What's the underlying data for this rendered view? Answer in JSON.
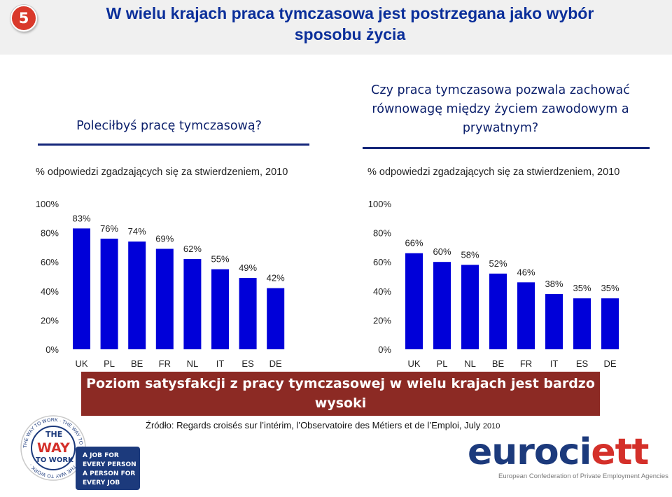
{
  "slide_number": "5",
  "title": "W wielu krajach praca tymczasowa jest postrzegana jako wybór sposobu życia",
  "colors": {
    "bar": "#0000d9",
    "title": "#0b2f9a",
    "banner": "#8c2a24",
    "badge": "#d9392b"
  },
  "chart_data": [
    {
      "type": "bar",
      "title": "Poleciłbyś pracę tymczasową?",
      "subtitle": "% odpowiedzi zgadzających się za stwierdzeniem, 2010",
      "categories": [
        "UK",
        "PL",
        "BE",
        "FR",
        "NL",
        "IT",
        "ES",
        "DE"
      ],
      "values": [
        83,
        76,
        74,
        69,
        62,
        55,
        49,
        42
      ],
      "value_labels": [
        "83%",
        "76%",
        "74%",
        "69%",
        "62%",
        "55%",
        "49%",
        "42%"
      ],
      "yticks": [
        "0%",
        "20%",
        "40%",
        "60%",
        "80%",
        "100%"
      ],
      "ylim": [
        0,
        100
      ],
      "grid": false,
      "legend": false
    },
    {
      "type": "bar",
      "title": "Czy praca tymczasowa pozwala zachować równowagę między życiem zawodowym a prywatnym?",
      "subtitle": "% odpowiedzi zgadzających się za stwierdzeniem, 2010",
      "categories": [
        "UK",
        "PL",
        "NL",
        "BE",
        "FR",
        "IT",
        "ES",
        "DE"
      ],
      "values": [
        66,
        60,
        58,
        52,
        46,
        38,
        35,
        35
      ],
      "value_labels": [
        "66%",
        "60%",
        "58%",
        "52%",
        "46%",
        "38%",
        "35%",
        "35%"
      ],
      "yticks": [
        "0%",
        "20%",
        "40%",
        "60%",
        "80%",
        "100%"
      ],
      "ylim": [
        0,
        100
      ],
      "grid": false,
      "legend": false
    }
  ],
  "banner": "Poziom satysfakcji z pracy tymczasowej w wielu krajach jest bardzo wysoki",
  "source": {
    "text": "Źródło: Regards croisés sur l’intérim, l’Observatoire des Métiers et de l’Emploi, July",
    "year": "2010"
  },
  "badge_logo": {
    "ring_text": "THE WAY TO WORK · THE WAY TO WORK · THE WAY TO WORK ·",
    "center": [
      "THE",
      "WAY",
      "TO WORK"
    ],
    "slogan": [
      "A JOB FOR",
      "EVERY PERSON",
      "A PERSON FOR",
      "EVERY JOB"
    ]
  },
  "brand_logo": {
    "name_part1": "euroci",
    "name_part2": "ett",
    "tagline": "European Confederation of Private Employment Agencies"
  }
}
